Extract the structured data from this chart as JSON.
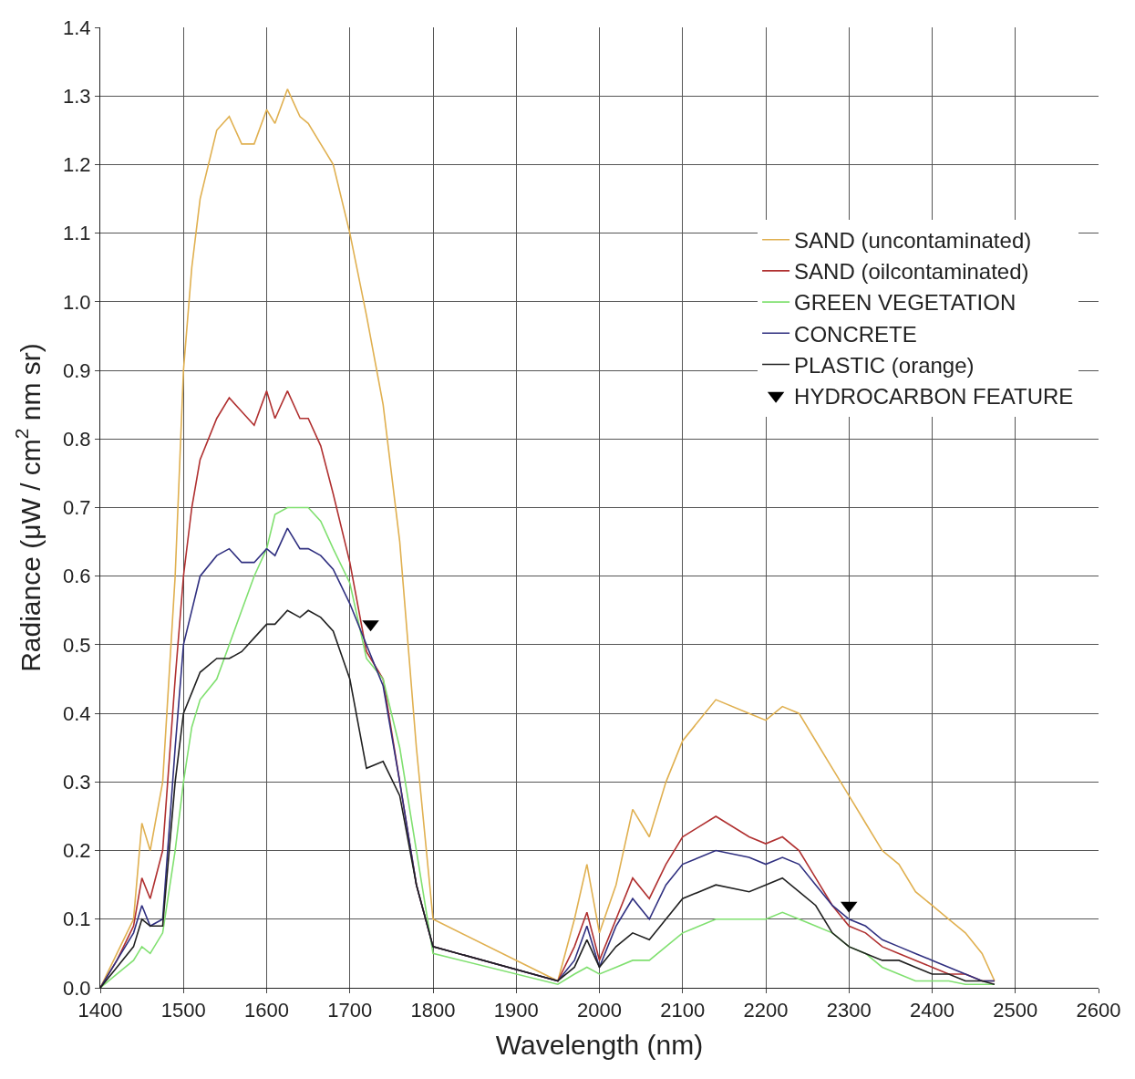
{
  "chart_data": {
    "type": "line",
    "xlabel": "Wavelength (nm)",
    "ylabel": "Radiance (μW / cm$^{2}$ nm sr)",
    "x": [
      1400,
      1420,
      1440,
      1450,
      1460,
      1475,
      1490,
      1500,
      1510,
      1520,
      1540,
      1555,
      1570,
      1585,
      1600,
      1610,
      1625,
      1640,
      1650,
      1665,
      1680,
      1700,
      1720,
      1740,
      1760,
      1780,
      1800,
      1950,
      1970,
      1985,
      2000,
      2020,
      2040,
      2060,
      2080,
      2100,
      2140,
      2180,
      2200,
      2220,
      2240,
      2260,
      2280,
      2300,
      2320,
      2340,
      2360,
      2380,
      2400,
      2420,
      2440,
      2460,
      2475
    ],
    "series": [
      {
        "name": "SAND (uncontaminated)",
        "color": "#e0b050",
        "values": [
          0.0,
          0.05,
          0.1,
          0.24,
          0.2,
          0.3,
          0.6,
          0.9,
          1.05,
          1.15,
          1.25,
          1.27,
          1.23,
          1.23,
          1.28,
          1.26,
          1.31,
          1.27,
          1.26,
          1.23,
          1.2,
          1.1,
          0.98,
          0.85,
          0.65,
          0.35,
          0.1,
          0.01,
          0.1,
          0.18,
          0.08,
          0.15,
          0.26,
          0.22,
          0.3,
          0.36,
          0.42,
          0.4,
          0.39,
          0.41,
          0.4,
          0.36,
          0.32,
          0.28,
          0.24,
          0.2,
          0.18,
          0.14,
          0.12,
          0.1,
          0.08,
          0.05,
          0.01
        ]
      },
      {
        "name": "SAND (oilcontaminated)",
        "color": "#b03030",
        "values": [
          0.0,
          0.04,
          0.09,
          0.16,
          0.13,
          0.2,
          0.45,
          0.6,
          0.7,
          0.77,
          0.83,
          0.86,
          0.84,
          0.82,
          0.87,
          0.83,
          0.87,
          0.83,
          0.83,
          0.79,
          0.72,
          0.62,
          0.49,
          0.45,
          0.3,
          0.15,
          0.06,
          0.01,
          0.06,
          0.11,
          0.04,
          0.1,
          0.16,
          0.13,
          0.18,
          0.22,
          0.25,
          0.22,
          0.21,
          0.22,
          0.2,
          0.16,
          0.12,
          0.09,
          0.08,
          0.06,
          0.05,
          0.04,
          0.03,
          0.02,
          0.02,
          0.01,
          0.01
        ]
      },
      {
        "name": "GREEN VEGETATION",
        "color": "#80e070",
        "values": [
          0.0,
          0.02,
          0.04,
          0.06,
          0.05,
          0.08,
          0.2,
          0.3,
          0.38,
          0.42,
          0.45,
          0.5,
          0.55,
          0.6,
          0.64,
          0.69,
          0.7,
          0.7,
          0.7,
          0.68,
          0.64,
          0.59,
          0.48,
          0.45,
          0.35,
          0.2,
          0.05,
          0.005,
          0.02,
          0.03,
          0.02,
          0.03,
          0.04,
          0.04,
          0.06,
          0.08,
          0.1,
          0.1,
          0.1,
          0.11,
          0.1,
          0.09,
          0.08,
          0.06,
          0.05,
          0.03,
          0.02,
          0.01,
          0.01,
          0.01,
          0.005,
          0.005,
          0.005
        ]
      },
      {
        "name": "CONCRETE",
        "color": "#303080",
        "values": [
          0.0,
          0.04,
          0.08,
          0.12,
          0.09,
          0.1,
          0.35,
          0.5,
          0.55,
          0.6,
          0.63,
          0.64,
          0.62,
          0.62,
          0.64,
          0.63,
          0.67,
          0.64,
          0.64,
          0.63,
          0.61,
          0.56,
          0.5,
          0.44,
          0.3,
          0.15,
          0.06,
          0.01,
          0.04,
          0.09,
          0.03,
          0.09,
          0.13,
          0.1,
          0.15,
          0.18,
          0.2,
          0.19,
          0.18,
          0.19,
          0.18,
          0.15,
          0.12,
          0.1,
          0.09,
          0.07,
          0.06,
          0.05,
          0.04,
          0.03,
          0.02,
          0.01,
          0.01
        ]
      },
      {
        "name": "PLASTIC (orange)",
        "color": "#202020",
        "values": [
          0.0,
          0.03,
          0.06,
          0.1,
          0.09,
          0.09,
          0.3,
          0.4,
          0.43,
          0.46,
          0.48,
          0.48,
          0.49,
          0.51,
          0.53,
          0.53,
          0.55,
          0.54,
          0.55,
          0.54,
          0.52,
          0.45,
          0.32,
          0.33,
          0.28,
          0.15,
          0.06,
          0.01,
          0.03,
          0.07,
          0.03,
          0.06,
          0.08,
          0.07,
          0.1,
          0.13,
          0.15,
          0.14,
          0.15,
          0.16,
          0.14,
          0.12,
          0.08,
          0.06,
          0.05,
          0.04,
          0.04,
          0.03,
          0.02,
          0.02,
          0.01,
          0.01,
          0.005
        ]
      },
      {
        "name": "HYDROCARBON FEATURE",
        "type": "scatter",
        "marker": "triangle",
        "color": "#000000",
        "x": [
          1725,
          2300
        ],
        "values": [
          0.53,
          0.12
        ]
      }
    ],
    "xlim": [
      1400,
      2600
    ],
    "xticks": [
      1400,
      1500,
      1600,
      1700,
      1800,
      1900,
      2000,
      2100,
      2200,
      2300,
      2400,
      2500,
      2600
    ],
    "ylim": [
      0,
      1.4
    ],
    "yticks": [
      {
        "value": 0,
        "label": "0.0"
      },
      {
        "value": 0.1,
        "label": "0.1"
      },
      {
        "value": 0.2,
        "label": "0.2"
      },
      {
        "value": 0.3,
        "label": "0.3"
      },
      {
        "value": 0.4,
        "label": "0.4"
      },
      {
        "value": 0.5,
        "label": "0.5"
      },
      {
        "value": 0.6,
        "label": "0.6"
      },
      {
        "value": 0.7,
        "label": "0.7"
      },
      {
        "value": 0.8,
        "label": "0.8"
      },
      {
        "value": 0.9,
        "label": "0.9"
      },
      {
        "value": 1.0,
        "label": "1.0"
      },
      {
        "value": 1.1,
        "label": "1.1"
      },
      {
        "value": 1.2,
        "label": "1.2"
      },
      {
        "value": 1.3,
        "label": "1.3"
      },
      {
        "value": 1.4,
        "label": "1.4"
      }
    ],
    "grid": true,
    "legend": "right",
    "marker": "none",
    "line_style": "solid"
  }
}
